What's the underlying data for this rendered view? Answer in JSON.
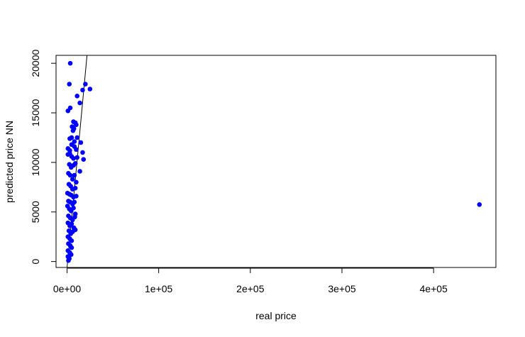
{
  "chart_data": {
    "type": "scatter",
    "title": "",
    "xlabel": "real price",
    "ylabel": "predicted price NN",
    "xlim": [
      -12000,
      468000
    ],
    "ylim": [
      -600,
      20800
    ],
    "x_ticks": [
      {
        "value": 0,
        "label": "0e+00"
      },
      {
        "value": 100000,
        "label": "1e+05"
      },
      {
        "value": 200000,
        "label": "2e+05"
      },
      {
        "value": 300000,
        "label": "3e+05"
      },
      {
        "value": 400000,
        "label": "4e+05"
      }
    ],
    "y_ticks": [
      {
        "value": 0,
        "label": "0"
      },
      {
        "value": 5000,
        "label": "5000"
      },
      {
        "value": 10000,
        "label": "10000"
      },
      {
        "value": 15000,
        "label": "15000"
      },
      {
        "value": 20000,
        "label": "20000"
      }
    ],
    "grid": false,
    "point_color": "#0000ff",
    "line_color": "#000000",
    "reference_line": {
      "from": [
        0,
        -600
      ],
      "to": [
        22000,
        21000
      ]
    },
    "points": [
      [
        450000,
        5750
      ],
      [
        3500,
        20000
      ],
      [
        2500,
        17900
      ],
      [
        25000,
        17400
      ],
      [
        20000,
        17900
      ],
      [
        17000,
        17300
      ],
      [
        11000,
        16700
      ],
      [
        14000,
        16000
      ],
      [
        1000,
        15200
      ],
      [
        3500,
        15500
      ],
      [
        7000,
        14100
      ],
      [
        9000,
        14000
      ],
      [
        5500,
        13600
      ],
      [
        7500,
        13400
      ],
      [
        10000,
        13800
      ],
      [
        6500,
        13200
      ],
      [
        3000,
        12400
      ],
      [
        5000,
        12500
      ],
      [
        8000,
        12100
      ],
      [
        11000,
        12500
      ],
      [
        15000,
        12000
      ],
      [
        1000,
        11400
      ],
      [
        3000,
        11200
      ],
      [
        5000,
        11800
      ],
      [
        8000,
        11600
      ],
      [
        10000,
        11300
      ],
      [
        1000,
        10800
      ],
      [
        3000,
        10900
      ],
      [
        5000,
        10600
      ],
      [
        7000,
        10400
      ],
      [
        11000,
        10500
      ],
      [
        17000,
        11000
      ],
      [
        18000,
        10300
      ],
      [
        2500,
        9800
      ],
      [
        4500,
        9500
      ],
      [
        7000,
        9700
      ],
      [
        9000,
        9900
      ],
      [
        14000,
        9100
      ],
      [
        1500,
        8900
      ],
      [
        3500,
        8700
      ],
      [
        6000,
        8300
      ],
      [
        8000,
        8700
      ],
      [
        10000,
        8000
      ],
      [
        2000,
        7800
      ],
      [
        4000,
        7600
      ],
      [
        6000,
        7300
      ],
      [
        9000,
        7400
      ],
      [
        500,
        6900
      ],
      [
        2500,
        6800
      ],
      [
        4500,
        6700
      ],
      [
        7000,
        6500
      ],
      [
        10000,
        6600
      ],
      [
        1500,
        6100
      ],
      [
        3500,
        6000
      ],
      [
        6000,
        5800
      ],
      [
        8000,
        6000
      ],
      [
        500,
        5600
      ],
      [
        2500,
        5300
      ],
      [
        4500,
        5100
      ],
      [
        7000,
        5400
      ],
      [
        9000,
        4800
      ],
      [
        1500,
        4600
      ],
      [
        3500,
        4400
      ],
      [
        6000,
        4200
      ],
      [
        8500,
        4500
      ],
      [
        1000,
        3900
      ],
      [
        3000,
        3600
      ],
      [
        5000,
        3800
      ],
      [
        7500,
        3400
      ],
      [
        2000,
        3100
      ],
      [
        4000,
        2800
      ],
      [
        6000,
        3000
      ],
      [
        9000,
        3200
      ],
      [
        1000,
        2500
      ],
      [
        3000,
        2300
      ],
      [
        5000,
        2100
      ],
      [
        1500,
        1800
      ],
      [
        3500,
        1600
      ],
      [
        5000,
        1400
      ],
      [
        1000,
        1100
      ],
      [
        3000,
        900
      ],
      [
        4500,
        700
      ],
      [
        1000,
        500
      ],
      [
        2500,
        300
      ],
      [
        1500,
        100
      ]
    ]
  }
}
